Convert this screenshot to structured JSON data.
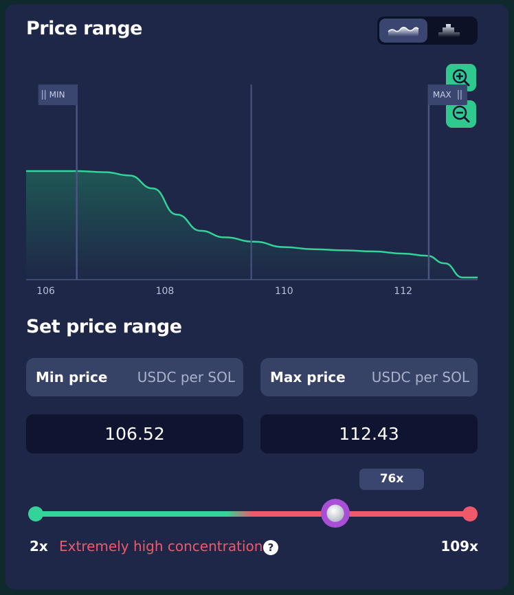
{
  "header": {
    "title": "Price range"
  },
  "toggle": {
    "options": [
      "area-chart-icon",
      "histogram-icon"
    ],
    "selected": "area-chart-icon"
  },
  "zoom": {
    "in_icon": "zoom-in-icon",
    "out_icon": "zoom-out-icon"
  },
  "chart_data": {
    "type": "area",
    "x": [
      106,
      106.5,
      107,
      107.4,
      107.8,
      108.2,
      108.6,
      109,
      109.5,
      110,
      110.5,
      111,
      111.5,
      112,
      112.4,
      112.7,
      113
    ],
    "values": [
      1.0,
      1.0,
      0.99,
      0.96,
      0.84,
      0.6,
      0.45,
      0.39,
      0.35,
      0.3,
      0.28,
      0.27,
      0.26,
      0.24,
      0.22,
      0.15,
      0.02
    ],
    "xticks": [
      "106",
      "108",
      "110",
      "112"
    ],
    "xlim": [
      105.67,
      113.25
    ],
    "ylim": [
      0,
      1
    ],
    "current_price": 109.45,
    "min_label": "MIN",
    "max_label": "MAX",
    "colors": {
      "line": "#34d399",
      "fill": "#1f5a55"
    }
  },
  "range": {
    "title": "Set price range",
    "min_label": "Min price",
    "max_label": "Max price",
    "unit": "USDC per SOL",
    "min_value": "106.52",
    "max_value": "112.43"
  },
  "leverage": {
    "value": "76x",
    "min": "2x",
    "max": "109x",
    "warning": "Extremely high concentration",
    "help": "?",
    "position": 0.69
  }
}
